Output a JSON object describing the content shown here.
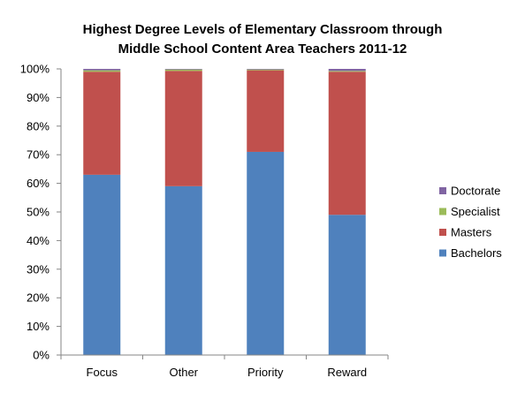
{
  "chart_data": {
    "type": "bar",
    "stacked": true,
    "percent_stacked": true,
    "title": "Highest Degree Levels of Elementary Classroom through Middle School Content Area Teachers 2011-12",
    "title_lines": [
      "Highest Degree Levels of Elementary Classroom through",
      "Middle School Content Area Teachers 2011-12"
    ],
    "xlabel": "",
    "ylabel": "",
    "categories": [
      "Focus",
      "Other",
      "Priority",
      "Reward"
    ],
    "ylim": [
      0,
      100
    ],
    "yticks": [
      0,
      10,
      20,
      30,
      40,
      50,
      60,
      70,
      80,
      90,
      100
    ],
    "ytick_labels": [
      "0%",
      "10%",
      "20%",
      "30%",
      "40%",
      "50%",
      "60%",
      "70%",
      "80%",
      "90%",
      "100%"
    ],
    "grid": false,
    "legend_position": "right",
    "series": [
      {
        "name": "Bachelors",
        "color": "#4f81bd",
        "values": [
          63,
          59,
          71,
          49
        ]
      },
      {
        "name": "Masters",
        "color": "#c0504d",
        "values": [
          36,
          40.3,
          28.5,
          50
        ]
      },
      {
        "name": "Specialist",
        "color": "#9bbb59",
        "values": [
          0.5,
          0.5,
          0.3,
          0.3
        ]
      },
      {
        "name": "Doctorate",
        "color": "#8064a2",
        "values": [
          0.5,
          0.2,
          0.2,
          0.7
        ]
      }
    ],
    "legend_order": [
      "Doctorate",
      "Specialist",
      "Masters",
      "Bachelors"
    ]
  }
}
